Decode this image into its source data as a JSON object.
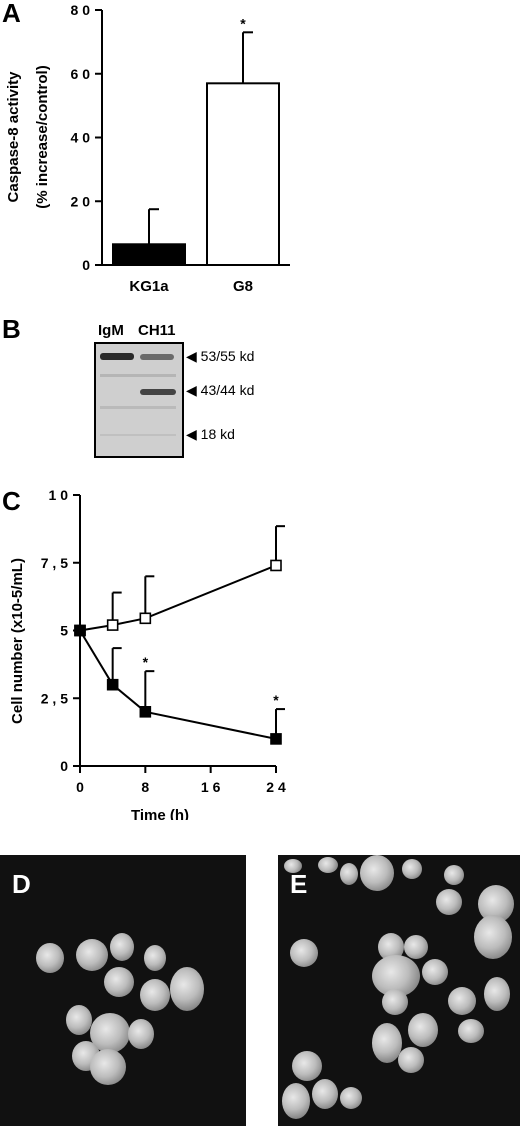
{
  "panels": {
    "A": "A",
    "B": "B",
    "C": "C",
    "D": "D",
    "E": "E"
  },
  "chart_data": [
    {
      "type": "bar",
      "panel": "A",
      "categories": [
        "KG1a",
        "G8"
      ],
      "values": [
        6.5,
        57
      ],
      "errors": [
        11,
        16
      ],
      "bar_fill": [
        "#000000",
        "#ffffff"
      ],
      "significance": [
        "",
        "*"
      ],
      "ylabel": "Caspase-8 activity",
      "ylabel2": "(% increase/control)",
      "ylim": [
        0,
        80
      ],
      "yticks": [
        0,
        20,
        40,
        60,
        80
      ],
      "ytick_labels": [
        "0",
        "2 0",
        "4 0",
        "6 0",
        "8 0"
      ],
      "grid": false
    },
    {
      "type": "line",
      "panel": "C",
      "x": [
        0,
        4,
        8,
        24
      ],
      "series": [
        {
          "marker": "open-square",
          "values": [
            5.0,
            5.2,
            5.45,
            7.4
          ],
          "errors": [
            0,
            1.2,
            1.55,
            1.45
          ],
          "significance": [
            "",
            "",
            "",
            ""
          ]
        },
        {
          "marker": "filled-square",
          "values": [
            5.0,
            3.0,
            2.0,
            1.0
          ],
          "errors": [
            0,
            1.35,
            1.5,
            1.1
          ],
          "significance": [
            "",
            "",
            "*",
            "*"
          ]
        }
      ],
      "xlabel": "Time (h)",
      "ylabel": "Cell number (x10-5/mL)",
      "xlim": [
        0,
        24
      ],
      "ylim": [
        0,
        10
      ],
      "xticks": [
        0,
        8,
        16,
        24
      ],
      "xtick_labels": [
        "0",
        "8",
        "1 6",
        "2 4"
      ],
      "yticks": [
        0,
        2.5,
        5,
        7.5,
        10
      ],
      "ytick_labels": [
        "0",
        "2 , 5",
        "5",
        "7 , 5",
        "1 0"
      ],
      "grid": false
    }
  ],
  "western_blot": {
    "lanes": [
      "IgM",
      "CH11"
    ],
    "markers": [
      "53/55 kd",
      "43/44 kd",
      "18 kd"
    ]
  },
  "micrographs": {
    "D": "D",
    "E": "E"
  },
  "colors": {
    "axis": "#000000",
    "filled_bar": "#000000",
    "open_bar": "#ffffff",
    "micrograph_bg": "#111111"
  }
}
